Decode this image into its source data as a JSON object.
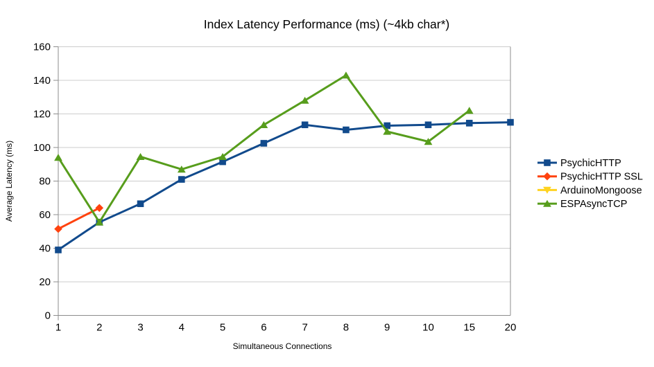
{
  "chart_data": {
    "type": "line",
    "title": "Index Latency Performance (ms) (~4kb char*)",
    "xlabel": "Simultaneous Connections",
    "ylabel": "Average Latency (ms)",
    "categories": [
      "1",
      "2",
      "3",
      "4",
      "5",
      "6",
      "7",
      "8",
      "9",
      "10",
      "15",
      "20"
    ],
    "y_ticks": [
      0,
      20,
      40,
      60,
      80,
      100,
      120,
      140,
      160
    ],
    "ylim": [
      0,
      160
    ],
    "grid": "horizontal",
    "legend_position": "right",
    "series": [
      {
        "name": "PsychicHTTP",
        "color": "#114a8c",
        "marker": "square",
        "values": [
          39,
          55.5,
          66.5,
          81,
          91.5,
          102.5,
          113.5,
          110.5,
          113,
          113.5,
          114.5,
          115
        ]
      },
      {
        "name": "PsychicHTTP SSL",
        "color": "#ff420e",
        "marker": "diamond",
        "values": [
          51.5,
          64,
          null,
          null,
          null,
          null,
          null,
          null,
          null,
          null,
          null,
          null
        ]
      },
      {
        "name": "ArduinoMongoose",
        "color": "#ffd320",
        "marker": "triangle-down",
        "values": [
          null,
          null,
          null,
          null,
          null,
          null,
          null,
          null,
          null,
          null,
          null,
          null
        ]
      },
      {
        "name": "ESPAsyncTCP",
        "color": "#579d1c",
        "marker": "triangle-up",
        "values": [
          94,
          55.5,
          94.5,
          87,
          94.5,
          113.5,
          128,
          143,
          109.5,
          103.5,
          122,
          null
        ]
      }
    ]
  },
  "colors": {
    "background": "#ffffff",
    "gridline": "#cccccc",
    "axis": "#8c8c8c",
    "text": "#000000"
  }
}
